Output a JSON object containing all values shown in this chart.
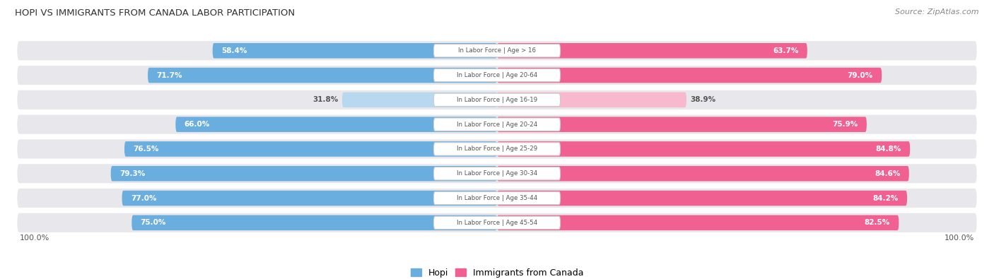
{
  "title": "HOPI VS IMMIGRANTS FROM CANADA LABOR PARTICIPATION",
  "source": "Source: ZipAtlas.com",
  "categories": [
    "In Labor Force | Age > 16",
    "In Labor Force | Age 20-64",
    "In Labor Force | Age 16-19",
    "In Labor Force | Age 20-24",
    "In Labor Force | Age 25-29",
    "In Labor Force | Age 30-34",
    "In Labor Force | Age 35-44",
    "In Labor Force | Age 45-54"
  ],
  "hopi_values": [
    58.4,
    71.7,
    31.8,
    66.0,
    76.5,
    79.3,
    77.0,
    75.0
  ],
  "canada_values": [
    63.7,
    79.0,
    38.9,
    75.9,
    84.8,
    84.6,
    84.2,
    82.5
  ],
  "hopi_color": "#6aaee0",
  "hopi_color_light": "#b8d8f0",
  "canada_color": "#f06090",
  "canada_color_light": "#f8b8ce",
  "row_bg_color": "#e8e8ec",
  "label_bg_color": "#ffffff",
  "page_bg_color": "#ffffff",
  "max_value": 100.0,
  "legend_hopi": "Hopi",
  "legend_canada": "Immigrants from Canada",
  "title_color": "#333333",
  "source_color": "#888888",
  "value_text_white_color": "#ffffff",
  "value_text_dark_color": "#555555",
  "label_text_color": "#555555"
}
